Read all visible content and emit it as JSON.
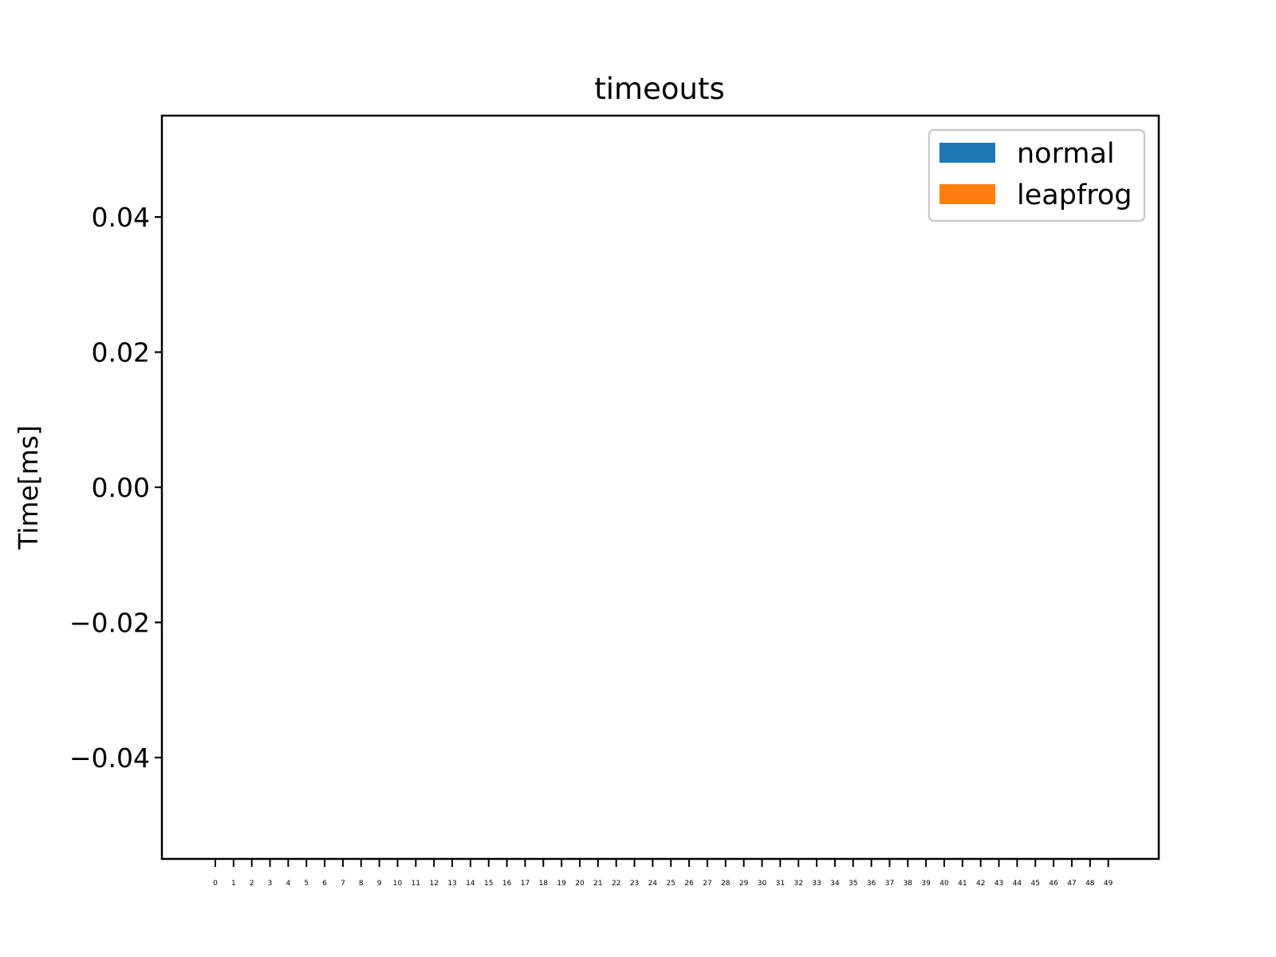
{
  "chart_data": {
    "type": "bar",
    "title": "timeouts",
    "xlabel": "",
    "ylabel": "Time[ms]",
    "categories": [
      "0",
      "1",
      "2",
      "3",
      "4",
      "5",
      "6",
      "7",
      "8",
      "9",
      "10",
      "11",
      "12",
      "13",
      "14",
      "15",
      "16",
      "17",
      "18",
      "19",
      "20",
      "21",
      "22",
      "23",
      "24",
      "25",
      "26",
      "27",
      "28",
      "29",
      "30",
      "31",
      "32",
      "33",
      "34",
      "35",
      "36",
      "37",
      "38",
      "39",
      "40",
      "41",
      "42",
      "43",
      "44",
      "45",
      "46",
      "47",
      "48",
      "49"
    ],
    "ylim": [
      -0.055,
      0.055
    ],
    "yticks": [
      -0.04,
      -0.02,
      0.0,
      0.02,
      0.04
    ],
    "ytick_labels": [
      "−0.04",
      "−0.02",
      "0.00",
      "0.02",
      "0.04"
    ],
    "series": [
      {
        "name": "normal",
        "color": "#1f77b4",
        "values": [
          0,
          0,
          0,
          0,
          0,
          0,
          0,
          0,
          0,
          0,
          0,
          0,
          0,
          0,
          0,
          0,
          0,
          0,
          0,
          0,
          0,
          0,
          0,
          0,
          0,
          0,
          0,
          0,
          0,
          0,
          0,
          0,
          0,
          0,
          0,
          0,
          0,
          0,
          0,
          0,
          0,
          0,
          0,
          0,
          0,
          0,
          0,
          0,
          0,
          0
        ]
      },
      {
        "name": "leapfrog",
        "color": "#ff7f0e",
        "values": [
          0,
          0,
          0,
          0,
          0,
          0,
          0,
          0,
          0,
          0,
          0,
          0,
          0,
          0,
          0,
          0,
          0,
          0,
          0,
          0,
          0,
          0,
          0,
          0,
          0,
          0,
          0,
          0,
          0,
          0,
          0,
          0,
          0,
          0,
          0,
          0,
          0,
          0,
          0,
          0,
          0,
          0,
          0,
          0,
          0,
          0,
          0,
          0,
          0,
          0
        ]
      }
    ],
    "grid": false,
    "legend_position": "top-right"
  }
}
